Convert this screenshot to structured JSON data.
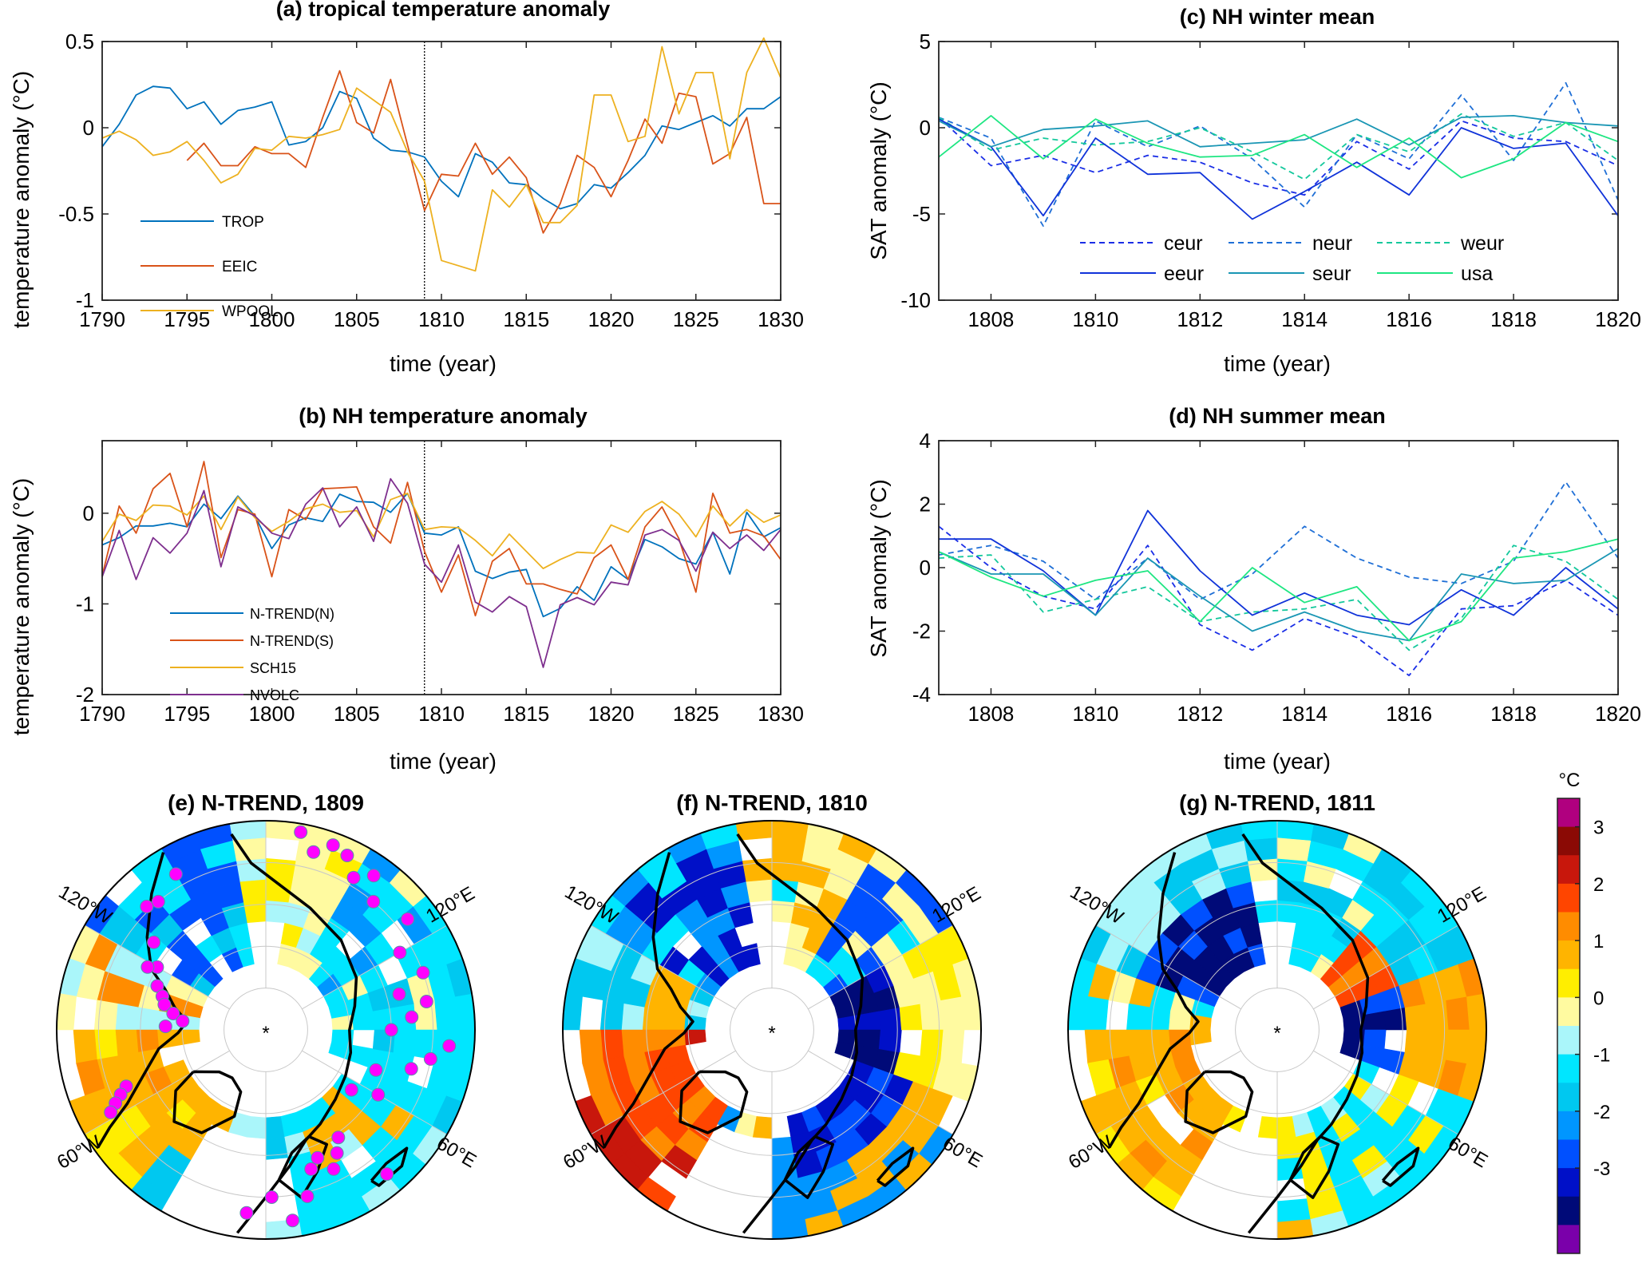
{
  "figure": {
    "colorbar": {
      "unit": "°C",
      "ticks": [
        "3",
        "2",
        "1",
        "0",
        "-1",
        "-2",
        "-3"
      ],
      "levels": [
        {
          "range": "> 3",
          "color": "#b0007f"
        },
        {
          "range": "2.5 to 3",
          "color": "#8b0a05"
        },
        {
          "range": "2 to 2.5",
          "color": "#c8170c"
        },
        {
          "range": "1.5 to 2",
          "color": "#ff4500"
        },
        {
          "range": "1 to 1.5",
          "color": "#ff8c00"
        },
        {
          "range": "0.5 to 1",
          "color": "#ffb400"
        },
        {
          "range": "0.25 to 0.5",
          "color": "#ffee00"
        },
        {
          "range": "0 to 0.25",
          "color": "#fffaa0"
        },
        {
          "range": "-0.25 to 0",
          "color": "#aaf6fa"
        },
        {
          "range": "-0.5 to -0.25",
          "color": "#00e6ff"
        },
        {
          "range": "-1 to -0.5",
          "color": "#00c8f0"
        },
        {
          "range": "-1.5 to -1",
          "color": "#0096ff"
        },
        {
          "range": "-2 to -1.5",
          "color": "#0050ff"
        },
        {
          "range": "-2.5 to -2",
          "color": "#0010c8"
        },
        {
          "range": "-3 to -2.5",
          "color": "#000a78"
        },
        {
          "range": "< -3",
          "color": "#7a00aa"
        }
      ]
    },
    "maps": [
      {
        "title": "(e) N-TREND, 1809",
        "show_proxy_sites": true
      },
      {
        "title": "(f) N-TREND, 1810",
        "show_proxy_sites": false
      },
      {
        "title": "(g) N-TREND, 1811",
        "show_proxy_sites": false
      }
    ],
    "map_labels": {
      "w120": "120°W",
      "w60": "60°W",
      "e120": "120°E",
      "e60": "60°E",
      "pole": "*"
    },
    "proxy_site_color": "#ff00ff"
  },
  "chart_data": [
    {
      "id": "a",
      "type": "line",
      "title": "(a) tropical temperature anomaly",
      "xlabel": "time (year)",
      "ylabel": "temperature anomaly (°C)",
      "xlim": [
        1790,
        1830
      ],
      "ylim": [
        -1,
        0.5
      ],
      "xticks": [
        1790,
        1795,
        1800,
        1805,
        1810,
        1815,
        1820,
        1825,
        1830
      ],
      "yticks": [
        -1,
        -0.5,
        0,
        0.5
      ],
      "ytick_labels": [
        "-1",
        "-0.5",
        "0",
        "0.5"
      ],
      "vline": 1809,
      "legend": "lower-left",
      "x_start": 1790,
      "series": [
        {
          "name": "TROP",
          "color": "#0072bd",
          "dash": false,
          "values": [
            -0.11,
            0.02,
            0.19,
            0.24,
            0.23,
            0.11,
            0.15,
            0.02,
            0.1,
            0.12,
            0.15,
            -0.1,
            -0.08,
            0.0,
            0.21,
            0.17,
            -0.06,
            -0.13,
            -0.14,
            -0.17,
            -0.31,
            -0.4,
            -0.15,
            -0.2,
            -0.32,
            -0.33,
            -0.41,
            -0.47,
            -0.44,
            -0.33,
            -0.35,
            -0.26,
            -0.16,
            0.01,
            -0.01,
            0.03,
            0.07,
            0.01,
            0.11,
            0.11,
            0.18
          ]
        },
        {
          "name": "EEIC",
          "color": "#d95319",
          "dash": false,
          "values": [
            null,
            null,
            null,
            null,
            null,
            -0.19,
            -0.09,
            -0.22,
            -0.22,
            -0.11,
            -0.15,
            -0.15,
            -0.23,
            0.06,
            0.33,
            0.03,
            -0.03,
            0.28,
            -0.1,
            -0.48,
            -0.27,
            -0.28,
            -0.09,
            -0.27,
            -0.17,
            -0.29,
            -0.61,
            -0.44,
            -0.16,
            -0.23,
            -0.4,
            -0.19,
            0.05,
            -0.09,
            0.2,
            0.18,
            -0.21,
            -0.15,
            0.06,
            -0.44,
            -0.44
          ]
        },
        {
          "name": "WPOOL",
          "color": "#edb120",
          "dash": false,
          "values": [
            -0.06,
            -0.02,
            -0.07,
            -0.16,
            -0.14,
            -0.08,
            -0.19,
            -0.32,
            -0.27,
            -0.12,
            -0.13,
            -0.05,
            -0.06,
            -0.04,
            -0.01,
            0.23,
            0.16,
            0.09,
            -0.14,
            -0.31,
            -0.77,
            -0.8,
            -0.83,
            -0.36,
            -0.46,
            -0.33,
            -0.55,
            -0.55,
            -0.45,
            0.19,
            0.19,
            -0.08,
            -0.05,
            0.47,
            0.08,
            0.32,
            0.32,
            -0.18,
            0.32,
            0.52,
            0.29
          ]
        }
      ]
    },
    {
      "id": "b",
      "type": "line",
      "title": "(b) NH temperature anomaly",
      "xlabel": "time (year)",
      "ylabel": "temperature anomaly (°C)",
      "xlim": [
        1790,
        1830
      ],
      "ylim": [
        -2,
        0.8
      ],
      "xticks": [
        1790,
        1795,
        1800,
        1805,
        1810,
        1815,
        1820,
        1825,
        1830
      ],
      "yticks": [
        -2,
        -1,
        0
      ],
      "ytick_labels": [
        "-2",
        "-1",
        "0"
      ],
      "vline": 1809,
      "legend": "lower-left",
      "x_start": 1790,
      "series": [
        {
          "name": "N-TREND(N)",
          "color": "#0072bd",
          "dash": false,
          "values": [
            -0.35,
            -0.27,
            -0.14,
            -0.14,
            -0.11,
            -0.15,
            0.1,
            -0.06,
            0.19,
            -0.03,
            -0.39,
            -0.13,
            -0.05,
            -0.09,
            0.21,
            0.13,
            0.12,
            0.01,
            0.22,
            -0.22,
            -0.24,
            -0.15,
            -0.64,
            -0.72,
            -0.65,
            -0.62,
            -1.14,
            -1.05,
            -0.81,
            -0.96,
            -0.59,
            -0.73,
            -0.29,
            -0.37,
            -0.5,
            -0.56,
            -0.21,
            -0.67,
            0.01,
            -0.26,
            -0.16
          ]
        },
        {
          "name": "N-TREND(S)",
          "color": "#d95319",
          "dash": false,
          "values": [
            -0.69,
            0.08,
            -0.22,
            0.27,
            0.44,
            -0.15,
            0.57,
            -0.49,
            0.04,
            -0.01,
            -0.7,
            0.04,
            -0.07,
            0.27,
            0.28,
            0.29,
            -0.15,
            -0.33,
            0.34,
            -0.42,
            -0.87,
            -0.46,
            -1.13,
            -0.53,
            -0.39,
            -0.78,
            -0.78,
            -0.84,
            -0.89,
            -0.49,
            -0.35,
            -0.73,
            -0.15,
            0.07,
            -0.28,
            -0.87,
            0.22,
            -0.22,
            -0.18,
            -0.25,
            -0.51
          ]
        },
        {
          "name": "SCH15",
          "color": "#edb120",
          "dash": false,
          "values": [
            -0.31,
            -0.01,
            -0.08,
            0.09,
            0.08,
            -0.02,
            0.19,
            -0.18,
            0.18,
            -0.05,
            -0.2,
            -0.09,
            0.05,
            0.1,
            0.01,
            0.03,
            -0.26,
            0.15,
            0.22,
            -0.18,
            -0.15,
            -0.16,
            -0.3,
            -0.47,
            -0.23,
            -0.42,
            -0.61,
            -0.51,
            -0.43,
            -0.44,
            -0.13,
            -0.21,
            0.02,
            0.13,
            -0.01,
            -0.26,
            0.08,
            -0.14,
            0.04,
            -0.1,
            -0.02
          ]
        },
        {
          "name": "NVOLC",
          "color": "#7e2f8e",
          "dash": false,
          "values": [
            -0.7,
            -0.19,
            -0.73,
            -0.27,
            -0.44,
            -0.22,
            0.25,
            -0.59,
            0.07,
            -0.03,
            -0.22,
            -0.28,
            0.1,
            0.28,
            -0.15,
            0.07,
            -0.31,
            0.38,
            0.11,
            -0.56,
            -0.76,
            -0.35,
            -0.98,
            -1.09,
            -0.92,
            -1.03,
            -1.7,
            -1.01,
            -0.93,
            -1.01,
            -0.76,
            -0.79,
            -0.24,
            -0.18,
            -0.3,
            -0.64,
            -0.21,
            -0.39,
            -0.24,
            -0.41,
            -0.18
          ]
        }
      ]
    },
    {
      "id": "c",
      "type": "line",
      "title": "(c) NH winter mean",
      "xlabel": "time (year)",
      "ylabel": "SAT anomaly (°C)",
      "xlim": [
        1807,
        1820
      ],
      "ylim": [
        -10,
        5
      ],
      "xticks": [
        1808,
        1810,
        1812,
        1814,
        1816,
        1818,
        1820
      ],
      "yticks": [
        -10,
        -5,
        0,
        5
      ],
      "ytick_labels": [
        "-10",
        "-5",
        "0",
        "5"
      ],
      "legend": "lower-center, 3 columns",
      "x_start": 1807,
      "series": [
        {
          "name": "ceur",
          "color": "#1a2ee6",
          "dash": true,
          "values": [
            0.6,
            -2.2,
            -1.6,
            -2.6,
            -1.6,
            -2.0,
            -3.2,
            -3.9,
            -0.8,
            -2.4,
            0.4,
            -0.6,
            -0.8,
            -2.2
          ]
        },
        {
          "name": "neur",
          "color": "#1f6fd6",
          "dash": true,
          "values": [
            0.6,
            -0.6,
            -5.7,
            0.4,
            -1.1,
            0.1,
            -1.8,
            -4.6,
            -0.4,
            -1.8,
            1.9,
            -1.9,
            2.6,
            -4.2
          ]
        },
        {
          "name": "weur",
          "color": "#14c89c",
          "dash": true,
          "values": [
            0.6,
            -1.3,
            -0.6,
            -1.0,
            -0.8,
            0.0,
            -1.4,
            -3.0,
            -0.4,
            -1.4,
            0.8,
            -0.5,
            0.3,
            -1.9
          ]
        },
        {
          "name": "eeur",
          "color": "#1033d9",
          "dash": false,
          "values": [
            0.5,
            -1.1,
            -5.1,
            -0.6,
            -2.7,
            -2.6,
            -5.3,
            -3.7,
            -2.0,
            -3.9,
            0.0,
            -1.2,
            -0.9,
            -5.1
          ]
        },
        {
          "name": "seur",
          "color": "#1a96b4",
          "dash": false,
          "values": [
            0.4,
            -1.1,
            -0.1,
            0.1,
            0.4,
            -1.1,
            -0.9,
            -0.7,
            0.5,
            -1.0,
            0.6,
            0.7,
            0.3,
            0.1
          ]
        },
        {
          "name": "usa",
          "color": "#1ee682",
          "dash": false,
          "values": [
            -1.7,
            0.7,
            -1.8,
            0.5,
            -0.9,
            -1.7,
            -1.6,
            -0.4,
            -2.3,
            -0.6,
            -2.9,
            -1.8,
            0.3,
            -0.8
          ]
        }
      ]
    },
    {
      "id": "d",
      "type": "line",
      "title": "(d) NH summer mean",
      "xlabel": "time (year)",
      "ylabel": "SAT anomaly (°C)",
      "xlim": [
        1807,
        1820
      ],
      "ylim": [
        -4,
        4
      ],
      "xticks": [
        1808,
        1810,
        1812,
        1814,
        1816,
        1818,
        1820
      ],
      "yticks": [
        -4,
        -2,
        0,
        2,
        4
      ],
      "ytick_labels": [
        "-4",
        "-2",
        "0",
        "2",
        "4"
      ],
      "legend": "none",
      "x_start": 1807,
      "series": [
        {
          "name": "ceur",
          "color": "#1a2ee6",
          "dash": true,
          "values": [
            1.3,
            0.0,
            -0.9,
            -1.3,
            0.7,
            -1.8,
            -2.6,
            -1.6,
            -2.2,
            -3.4,
            -1.3,
            -1.2,
            -0.4,
            -1.5
          ]
        },
        {
          "name": "neur",
          "color": "#1f6fd6",
          "dash": true,
          "values": [
            0.4,
            0.7,
            0.2,
            -1.0,
            0.3,
            -1.0,
            -0.2,
            1.3,
            0.3,
            -0.3,
            -0.5,
            0.2,
            2.7,
            0.3
          ]
        },
        {
          "name": "weur",
          "color": "#14c89c",
          "dash": true,
          "values": [
            0.3,
            0.4,
            -1.4,
            -1.0,
            -0.6,
            -1.7,
            -1.4,
            -1.3,
            -1.0,
            -2.6,
            -1.6,
            0.7,
            0.2,
            -1.0
          ]
        },
        {
          "name": "eeur",
          "color": "#1033d9",
          "dash": false,
          "values": [
            0.9,
            0.9,
            -0.1,
            -1.5,
            1.8,
            -0.1,
            -1.5,
            -0.8,
            -1.5,
            -1.8,
            -0.7,
            -1.5,
            0.0,
            -1.3
          ]
        },
        {
          "name": "seur",
          "color": "#1a96b4",
          "dash": false,
          "values": [
            0.5,
            -0.2,
            -0.2,
            -1.5,
            0.3,
            -0.9,
            -2.0,
            -1.4,
            -2.0,
            -2.3,
            -0.2,
            -0.5,
            -0.4,
            0.6
          ]
        },
        {
          "name": "usa",
          "color": "#1ee682",
          "dash": false,
          "values": [
            0.5,
            -0.3,
            -0.9,
            -0.4,
            -0.1,
            -1.7,
            0.0,
            -1.1,
            -0.6,
            -2.3,
            -1.7,
            0.3,
            0.5,
            0.9
          ]
        }
      ]
    }
  ]
}
